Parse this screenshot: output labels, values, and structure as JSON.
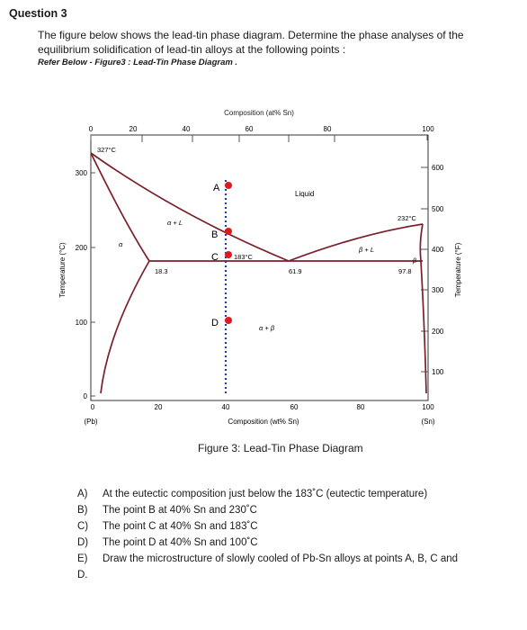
{
  "question": {
    "title": "Question 3",
    "text": "The figure below shows the lead-tin phase diagram. Determine the phase analyses of the equilibrium solidification of lead-tin alloys at the following points :",
    "reference": "Refer Below - Figure3 : Lead-Tin Phase Diagram ."
  },
  "figure": {
    "caption": "Figure 3: Lead-Tin Phase Diagram",
    "top_axis_title": "Composition (at% Sn)",
    "top_ticks": [
      "0",
      "20",
      "40",
      "60",
      "80",
      "100"
    ],
    "bottom_axis_title": "Composition (wt% Sn)",
    "bottom_ticks": [
      "0",
      "20",
      "40",
      "60",
      "80",
      "100"
    ],
    "left_axis_title": "Temperature (°C)",
    "left_ticks": [
      "300",
      "200",
      "100",
      "0"
    ],
    "right_axis_title": "Temperature (°F)",
    "right_ticks": [
      "600",
      "500",
      "400",
      "300",
      "200",
      "100"
    ],
    "pb_label": "(Pb)",
    "sn_label": "(Sn)",
    "labels": {
      "pb_melting": "327°C",
      "sn_melting": "232°C",
      "liquid": "Liquid",
      "alpha_l": "α + L",
      "beta_l": "β + L",
      "alpha": "α",
      "beta": "β",
      "alpha_beta": "α + β",
      "eutectic_temp": "183°C",
      "comp_alpha": "18.3",
      "comp_eutectic": "61.9",
      "comp_beta": "97.8"
    },
    "points": [
      {
        "label": "A",
        "wt_sn": 40,
        "temp_c": 250
      },
      {
        "label": "B",
        "wt_sn": 40,
        "temp_c": 230
      },
      {
        "label": "C",
        "wt_sn": 40,
        "temp_c": 183
      },
      {
        "label": "D",
        "wt_sn": 40,
        "temp_c": 100
      }
    ],
    "colors": {
      "line": "#7a1f2b",
      "points": "#e01a1a",
      "dotted": "#1f3fa6"
    }
  },
  "questions": [
    {
      "letter": "A)",
      "text": "At the eutectic composition just below the 183˚C (eutectic temperature)"
    },
    {
      "letter": "B)",
      "text": "The point B at 40% Sn and 230˚C"
    },
    {
      "letter": "C)",
      "text": "The point C at 40% Sn and 183˚C"
    },
    {
      "letter": "D)",
      "text": "The point D at 40% Sn and 100˚C"
    },
    {
      "letter": "E)",
      "text": "Draw the microstructure of slowly cooled of Pb-Sn alloys at points A, B, C and"
    },
    {
      "letter": "D.",
      "text": ""
    }
  ]
}
